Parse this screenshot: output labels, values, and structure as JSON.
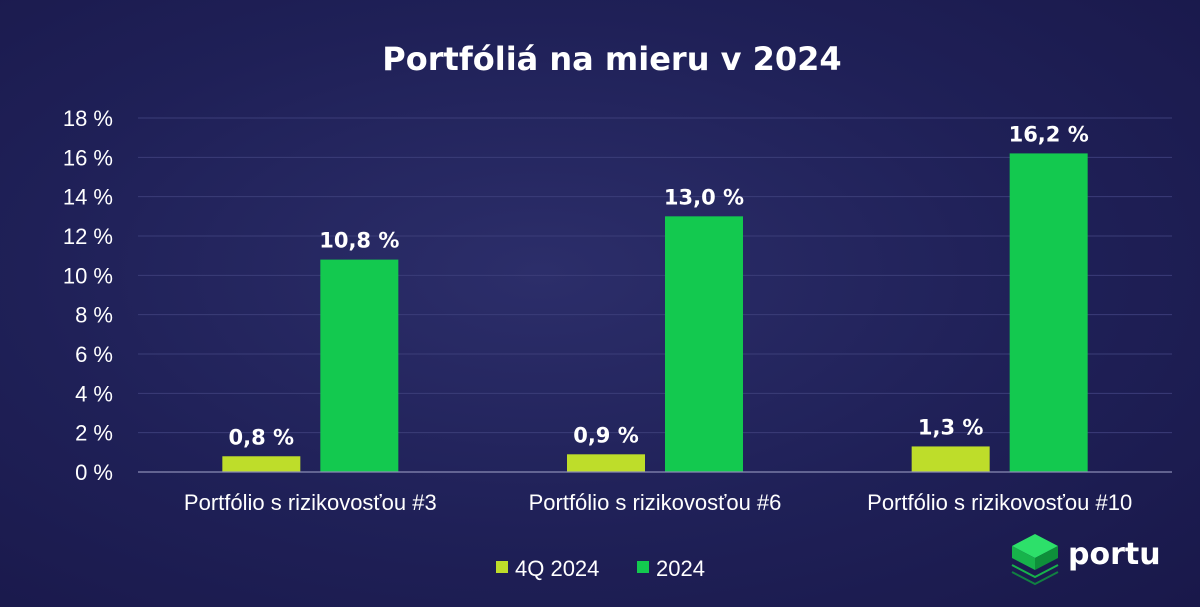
{
  "chart_data": {
    "type": "bar",
    "title": "Portfóliá na mieru v 2024",
    "categories": [
      "Portfólio s rizikovosťou #3",
      "Portfólio s rizikovosťou #6",
      "Portfólio s rizikovosťou #10"
    ],
    "series": [
      {
        "name": "4Q 2024",
        "values": [
          0.8,
          0.9,
          1.3
        ],
        "labels": [
          "0,8 %",
          "0,9 %",
          "1,3 %"
        ],
        "color": "#bedd2a"
      },
      {
        "name": "2024",
        "values": [
          10.8,
          13.0,
          16.2
        ],
        "labels": [
          "10,8 %",
          "13,0 %",
          "16,2 %"
        ],
        "color": "#13c94f"
      }
    ],
    "yticks": [
      0,
      2,
      4,
      6,
      8,
      10,
      12,
      14,
      16,
      18
    ],
    "ytick_labels": [
      "0 %",
      "2 %",
      "4 %",
      "6 %",
      "8 %",
      "10 %",
      "12 %",
      "14 %",
      "16 %",
      "18 %"
    ],
    "ylim": [
      0,
      18
    ],
    "grid": true,
    "legend_position": "bottom"
  },
  "brand": {
    "name": "portu",
    "logo_icon": "stacked-cubes-icon",
    "colors": [
      "#1fc45a",
      "#0f9a3f"
    ]
  }
}
